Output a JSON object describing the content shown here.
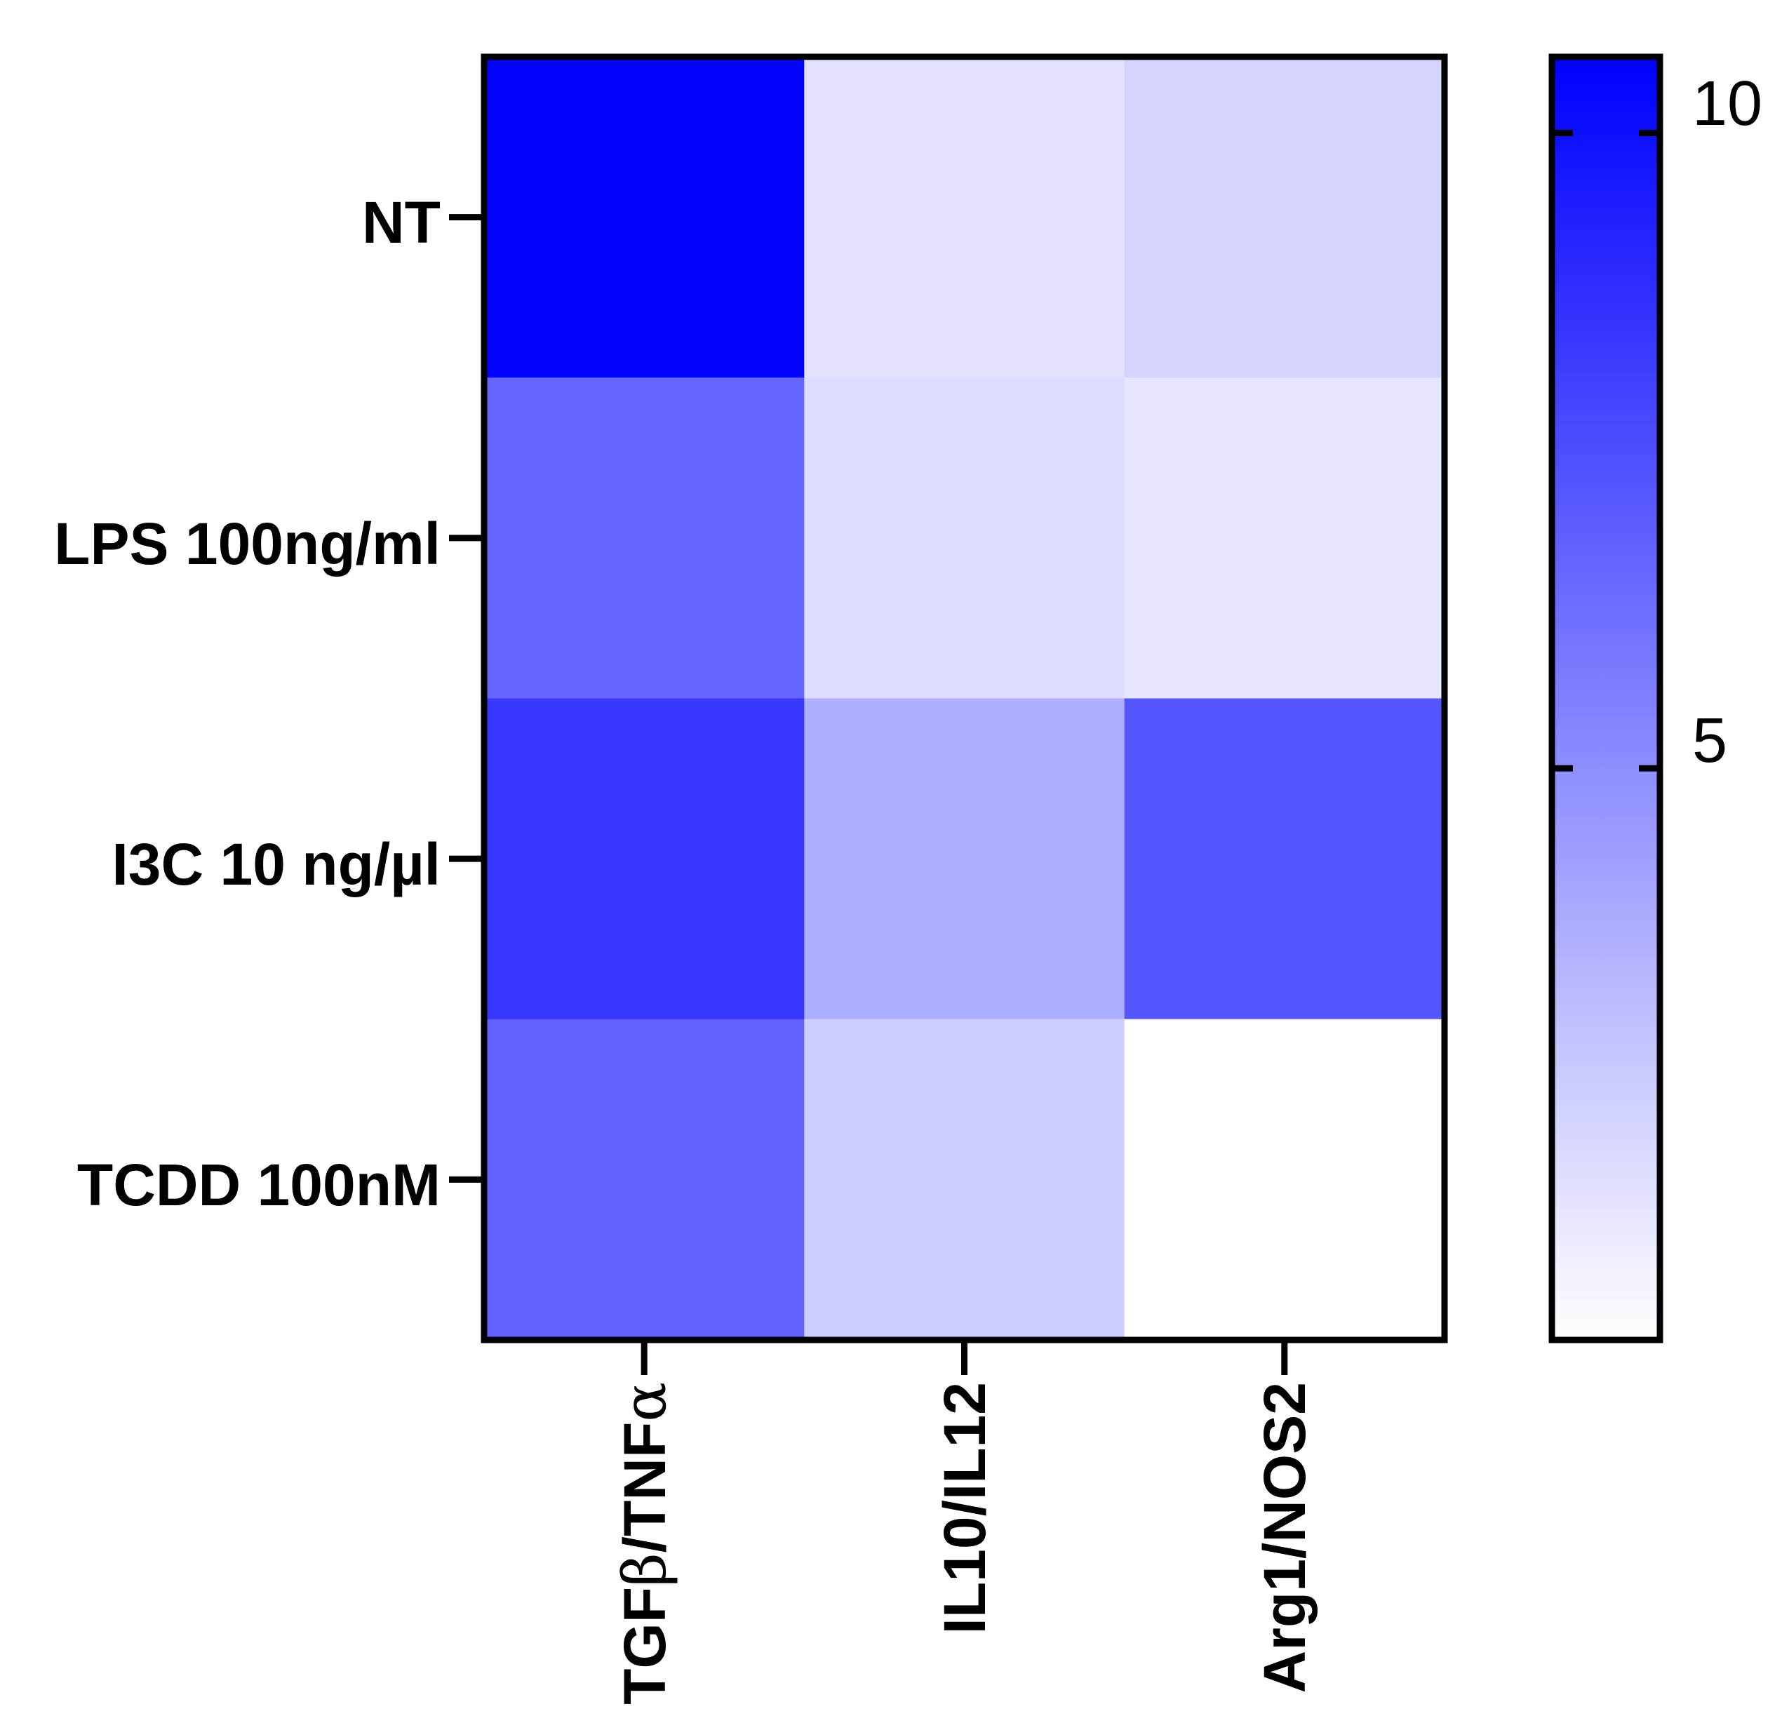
{
  "chart_data": {
    "type": "heatmap",
    "title": "",
    "rows": [
      "NT",
      "LPS 100ng/ml",
      "I3C 10 ng/µl",
      "TCDD 100nM"
    ],
    "columns": [
      {
        "prefix": "TGF",
        "greek1": "β",
        "middle": "/TNF",
        "greek2": "α"
      },
      {
        "prefix": "IL10/IL12",
        "greek1": "",
        "middle": "",
        "greek2": ""
      },
      {
        "prefix": "Arg1/NOS2",
        "greek1": "",
        "middle": "",
        "greek2": ""
      }
    ],
    "values": [
      [
        10.5,
        1.6,
        2.2
      ],
      [
        6.6,
        1.9,
        1.5
      ],
      [
        8.4,
        3.7,
        7.2
      ],
      [
        6.7,
        2.5,
        0.5
      ]
    ],
    "colorbar": {
      "min": 0.5,
      "max": 10.6,
      "ticks": [
        5,
        10
      ],
      "tick_labels": [
        "5",
        "10"
      ],
      "color_low": "#ffffff",
      "color_high": "#0000ff"
    },
    "xlabel": "",
    "ylabel": ""
  }
}
